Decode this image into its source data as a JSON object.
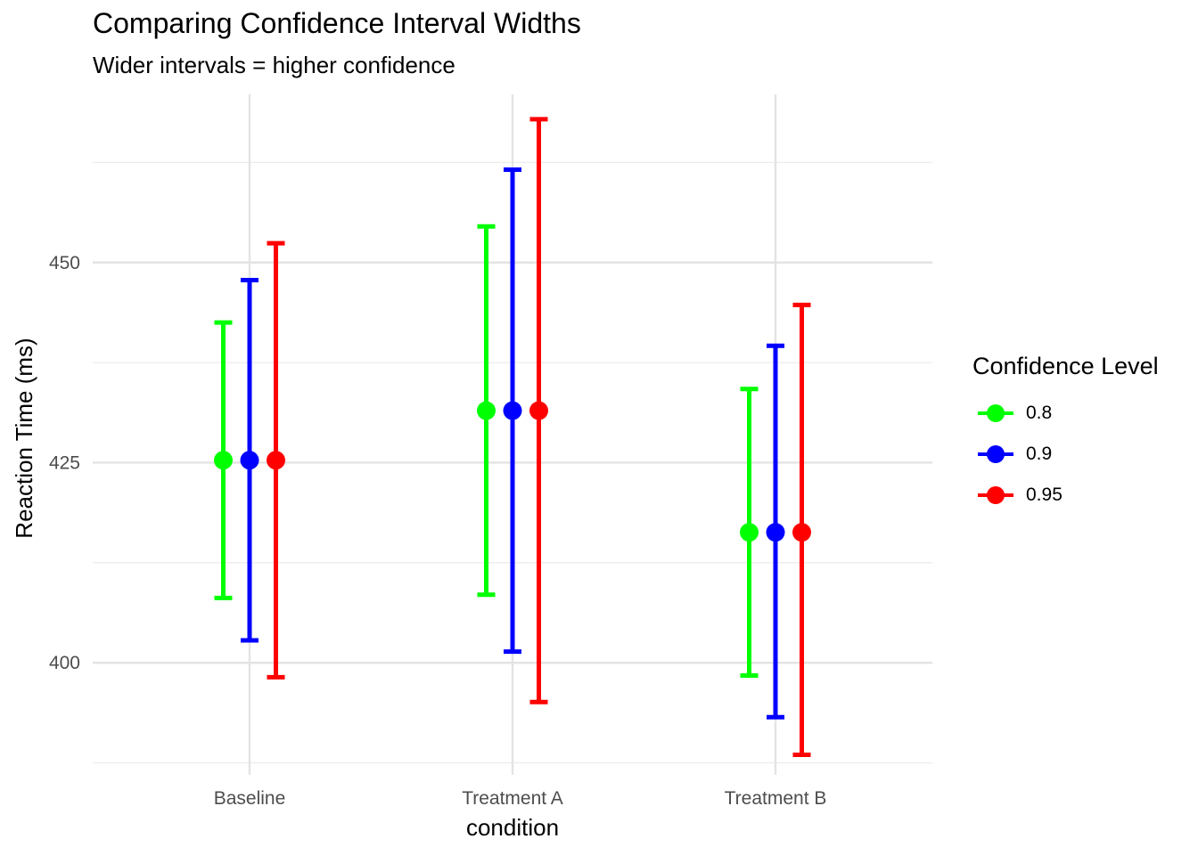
{
  "chart_data": {
    "type": "errorbar",
    "title": "Comparing Confidence Interval Widths",
    "subtitle": "Wider intervals = higher confidence",
    "xlabel": "condition",
    "ylabel": "Reaction Time (ms)",
    "categories": [
      "Baseline",
      "Treatment A",
      "Treatment B"
    ],
    "y_ticks": [
      400,
      425,
      450
    ],
    "ylim": [
      386,
      471
    ],
    "grid": true,
    "legend": {
      "title": "Confidence Level",
      "position": "right"
    },
    "series": [
      {
        "name": "0.8",
        "color": "#00FF00",
        "mean": [
          425.3,
          431.5,
          416.3
        ],
        "lower": [
          408.1,
          408.5,
          398.4
        ],
        "upper": [
          442.5,
          454.5,
          434.2
        ]
      },
      {
        "name": "0.9",
        "color": "#0000FF",
        "mean": [
          425.3,
          431.5,
          416.3
        ],
        "lower": [
          402.8,
          401.4,
          393.2
        ],
        "upper": [
          447.8,
          461.6,
          439.6
        ]
      },
      {
        "name": "0.95",
        "color": "#FF0000",
        "mean": [
          425.3,
          431.5,
          416.3
        ],
        "lower": [
          398.2,
          395.1,
          388.5
        ],
        "upper": [
          452.4,
          467.9,
          444.7
        ]
      }
    ]
  }
}
